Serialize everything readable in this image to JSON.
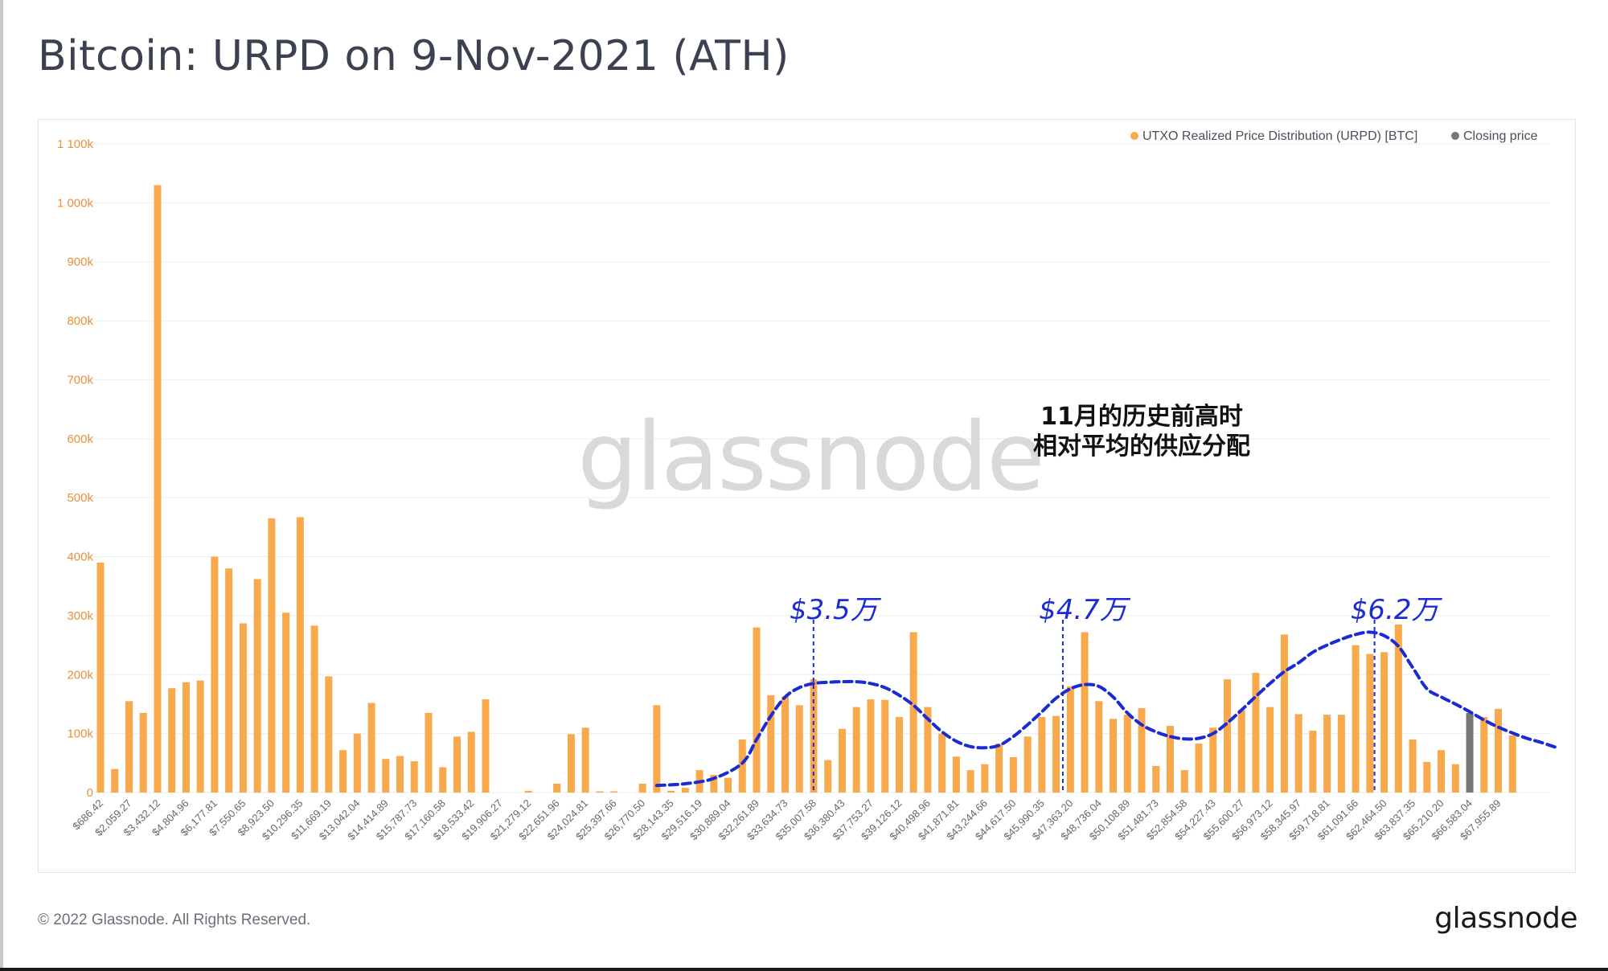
{
  "title": "Bitcoin: URPD on 9-Nov-2021 (ATH)",
  "footer": {
    "copyright": "© 2022 Glassnode. All Rights Reserved.",
    "brand": "glassnode"
  },
  "watermark": "glassnode",
  "colors": {
    "bar": "#f7a94b",
    "closing": "#777777",
    "axis_text": "#e8913a",
    "annotation": "#1a2bd6",
    "title": "#3b4150"
  },
  "chart_data": {
    "type": "bar",
    "legend_position": "top-right",
    "grid": true,
    "legend": [
      {
        "label": "UTXO Realized Price Distribution (URPD) [BTC]",
        "color": "#f7a94b"
      },
      {
        "label": "Closing price",
        "color": "#777777"
      }
    ],
    "y_ticks": [
      "0",
      "100k",
      "200k",
      "300k",
      "400k",
      "500k",
      "600k",
      "700k",
      "800k",
      "900k",
      "1 000k",
      "1 100k"
    ],
    "ylim": [
      0,
      1100000
    ],
    "x_tick_labels": [
      "$686.42",
      "$2,059.27",
      "$3,432.12",
      "$4,804.96",
      "$6,177.81",
      "$7,550.65",
      "$8,923.50",
      "$10,296.35",
      "$11,669.19",
      "$13,042.04",
      "$14,414.89",
      "$15,787.73",
      "$17,160.58",
      "$18,533.42",
      "$19,906.27",
      "$21,279.12",
      "$22,651.96",
      "$24,024.81",
      "$25,397.66",
      "$26,770.50",
      "$28,143.35",
      "$29,516.19",
      "$30,889.04",
      "$32,261.89",
      "$33,634.73",
      "$35,007.58",
      "$36,380.43",
      "$37,753.27",
      "$39,126.12",
      "$40,498.96",
      "$41,871.81",
      "$43,244.66",
      "$44,617.50",
      "$45,990.35",
      "$47,363.20",
      "$48,736.04",
      "$50,108.89",
      "$51,481.73",
      "$52,854.58",
      "$54,227.43",
      "$55,600.27",
      "$56,973.12",
      "$58,345.97",
      "$59,718.81",
      "$61,091.66",
      "$62,464.50",
      "$63,837.35",
      "$65,210.20",
      "$66,583.04",
      "$67,955.89"
    ],
    "bin_width": 686.42,
    "closing_price_bin_index": 96,
    "series": [
      {
        "name": "UTXO Realized Price Distribution (URPD) [BTC]",
        "values": [
          390000,
          40000,
          155000,
          135000,
          1030000,
          177000,
          187000,
          190000,
          400000,
          380000,
          287000,
          362000,
          465000,
          305000,
          467000,
          283000,
          197000,
          72000,
          100000,
          152000,
          57000,
          62000,
          53000,
          135000,
          43000,
          95000,
          103000,
          158000,
          0,
          0,
          3000,
          0,
          15000,
          99000,
          110000,
          2000,
          2000,
          0,
          15000,
          148000,
          3000,
          8000,
          38000,
          30000,
          25000,
          90000,
          280000,
          165000,
          163000,
          148000,
          192000,
          55000,
          108000,
          145000,
          158000,
          157000,
          128000,
          272000,
          145000,
          100000,
          61000,
          38000,
          48000,
          83000,
          60000,
          95000,
          128000,
          130000,
          180000,
          272000,
          155000,
          125000,
          132000,
          143000,
          45000,
          113000,
          38000,
          83000,
          110000,
          192000,
          140000,
          203000,
          145000,
          268000,
          133000,
          105000,
          132000,
          132000,
          250000,
          235000,
          238000,
          285000,
          90000,
          52000,
          72000,
          48000,
          135000,
          128000,
          142000,
          97000
        ]
      }
    ]
  },
  "annotations": {
    "caption_line1": "11月的历史前高时",
    "caption_line2": "相对平均的供应分配",
    "labels": [
      "$3.5万",
      "$4.7万",
      "$6.2万"
    ],
    "marker_prices": [
      35000,
      47000,
      62000
    ]
  }
}
